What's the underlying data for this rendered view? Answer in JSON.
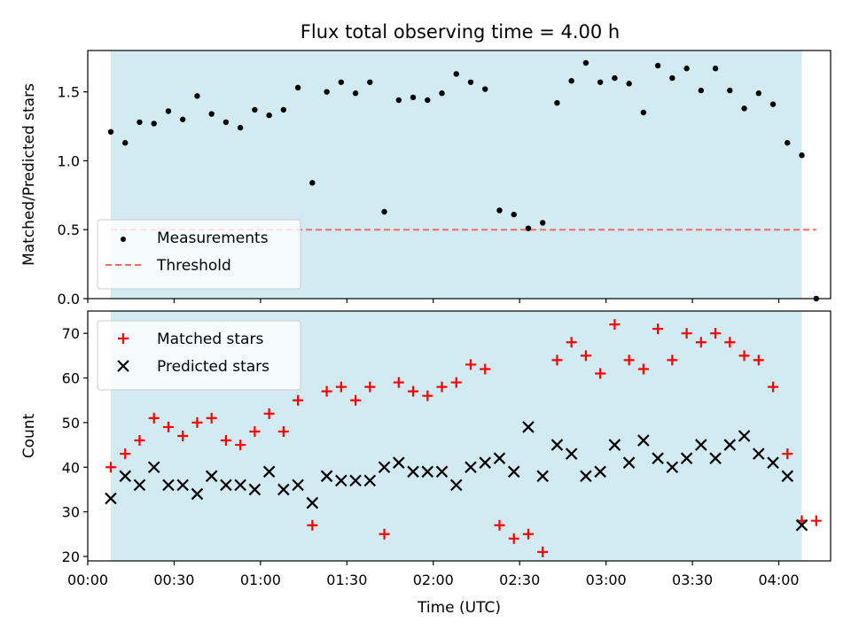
{
  "chart_data": [
    {
      "type": "scatter",
      "title": "Flux total observing time = 4.00 h",
      "xlabel": "",
      "ylabel": "Matched/Predicted stars",
      "xlim": [
        "00:00",
        "04:18"
      ],
      "ylim": [
        0,
        1.8
      ],
      "yticks": [
        "0.0",
        "0.5",
        "1.0",
        "1.5"
      ],
      "grid": false,
      "legend_position": "lower-left",
      "shaded_span": [
        "00:08",
        "04:08"
      ],
      "shade_color": "#add8e6",
      "threshold": {
        "name": "Threshold",
        "value": 0.5,
        "x_range": [
          "00:08",
          "04:13"
        ],
        "color": "#ff6666"
      },
      "series": [
        {
          "name": "Measurements",
          "color": "#000000",
          "x": [
            "00:08",
            "00:13",
            "00:18",
            "00:23",
            "00:28",
            "00:33",
            "00:38",
            "00:43",
            "00:48",
            "00:53",
            "00:58",
            "01:03",
            "01:08",
            "01:13",
            "01:18",
            "01:23",
            "01:28",
            "01:33",
            "01:38",
            "01:43",
            "01:48",
            "01:53",
            "01:58",
            "02:03",
            "02:08",
            "02:13",
            "02:18",
            "02:23",
            "02:28",
            "02:33",
            "02:38",
            "02:43",
            "02:48",
            "02:53",
            "02:58",
            "03:03",
            "03:08",
            "03:13",
            "03:18",
            "03:23",
            "03:28",
            "03:33",
            "03:38",
            "03:43",
            "03:48",
            "03:53",
            "03:58",
            "04:03",
            "04:08",
            "04:13"
          ],
          "y": [
            1.21,
            1.13,
            1.28,
            1.27,
            1.36,
            1.3,
            1.47,
            1.34,
            1.28,
            1.24,
            1.37,
            1.33,
            1.37,
            1.53,
            0.84,
            1.5,
            1.57,
            1.49,
            1.57,
            0.63,
            1.44,
            1.46,
            1.44,
            1.49,
            1.63,
            1.57,
            1.52,
            0.64,
            0.61,
            0.51,
            0.55,
            1.42,
            1.58,
            1.71,
            1.57,
            1.6,
            1.56,
            1.35,
            1.69,
            1.6,
            1.67,
            1.51,
            1.67,
            1.51,
            1.38,
            1.49,
            1.41,
            1.13,
            1.04,
            0.0
          ]
        }
      ]
    },
    {
      "type": "scatter",
      "title": "",
      "xlabel": "Time (UTC)",
      "ylabel": "Count",
      "xlim": [
        "00:00",
        "04:18"
      ],
      "ylim": [
        19,
        75
      ],
      "xticks": [
        "00:00",
        "00:30",
        "01:00",
        "01:30",
        "02:00",
        "02:30",
        "03:00",
        "03:30",
        "04:00"
      ],
      "yticks": [
        "20",
        "30",
        "40",
        "50",
        "60",
        "70"
      ],
      "grid": false,
      "legend_position": "upper-left",
      "shaded_span": [
        "00:08",
        "04:08"
      ],
      "shade_color": "#add8e6",
      "series": [
        {
          "name": "Matched stars",
          "marker": "+",
          "color": "#ff0000",
          "x": [
            "00:08",
            "00:13",
            "00:18",
            "00:23",
            "00:28",
            "00:33",
            "00:38",
            "00:43",
            "00:48",
            "00:53",
            "00:58",
            "01:03",
            "01:08",
            "01:13",
            "01:18",
            "01:23",
            "01:28",
            "01:33",
            "01:38",
            "01:43",
            "01:48",
            "01:53",
            "01:58",
            "02:03",
            "02:08",
            "02:13",
            "02:18",
            "02:23",
            "02:28",
            "02:33",
            "02:38",
            "02:43",
            "02:48",
            "02:53",
            "02:58",
            "03:03",
            "03:08",
            "03:13",
            "03:18",
            "03:23",
            "03:28",
            "03:33",
            "03:38",
            "03:43",
            "03:48",
            "03:53",
            "03:58",
            "04:03",
            "04:08",
            "04:13"
          ],
          "y": [
            40,
            43,
            46,
            51,
            49,
            47,
            50,
            51,
            46,
            45,
            48,
            52,
            48,
            55,
            27,
            57,
            58,
            55,
            58,
            25,
            59,
            57,
            56,
            58,
            59,
            63,
            62,
            27,
            24,
            25,
            21,
            64,
            68,
            65,
            61,
            72,
            64,
            62,
            71,
            64,
            70,
            68,
            70,
            68,
            65,
            64,
            58,
            43,
            28,
            28
          ]
        },
        {
          "name": "Predicted stars",
          "marker": "x",
          "color": "#000000",
          "x": [
            "00:08",
            "00:13",
            "00:18",
            "00:23",
            "00:28",
            "00:33",
            "00:38",
            "00:43",
            "00:48",
            "00:53",
            "00:58",
            "01:03",
            "01:08",
            "01:13",
            "01:18",
            "01:23",
            "01:28",
            "01:33",
            "01:38",
            "01:43",
            "01:48",
            "01:53",
            "01:58",
            "02:03",
            "02:08",
            "02:13",
            "02:18",
            "02:23",
            "02:28",
            "02:33",
            "02:38",
            "02:43",
            "02:48",
            "02:53",
            "02:58",
            "03:03",
            "03:08",
            "03:13",
            "03:18",
            "03:23",
            "03:28",
            "03:33",
            "03:38",
            "03:43",
            "03:48",
            "03:53",
            "03:58",
            "04:03",
            "04:08"
          ],
          "y": [
            33,
            38,
            36,
            40,
            36,
            36,
            34,
            38,
            36,
            36,
            35,
            39,
            35,
            36,
            32,
            38,
            37,
            37,
            37,
            40,
            41,
            39,
            39,
            39,
            36,
            40,
            41,
            42,
            39,
            49,
            38,
            45,
            43,
            38,
            39,
            45,
            41,
            46,
            42,
            40,
            42,
            45,
            42,
            45,
            47,
            43,
            41,
            38,
            27
          ]
        }
      ]
    }
  ]
}
